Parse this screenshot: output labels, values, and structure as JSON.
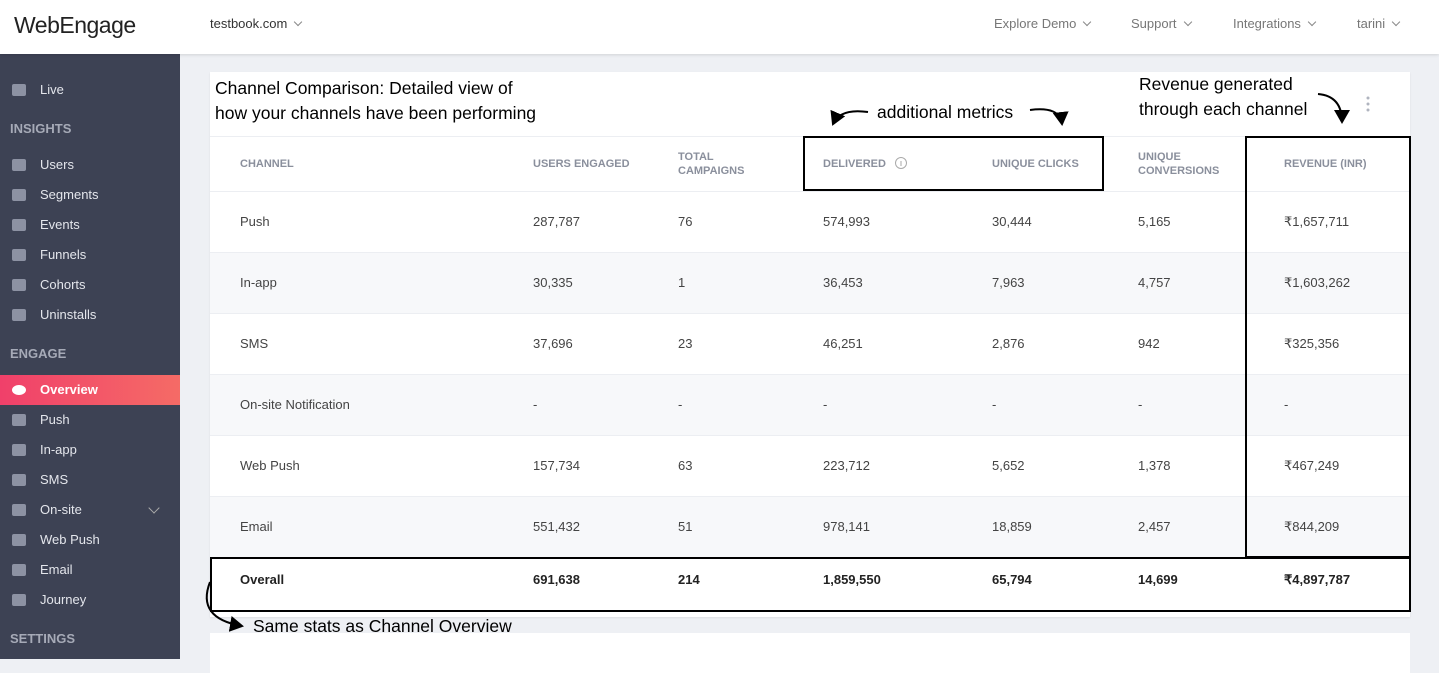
{
  "header": {
    "logo": "WebEngage",
    "project": "testbook.com",
    "nav": [
      "Explore Demo",
      "Support",
      "Integrations",
      "tarini"
    ]
  },
  "sidebar": {
    "top": [
      {
        "label": "Live"
      }
    ],
    "sections": [
      {
        "title": "INSIGHTS",
        "items": [
          {
            "label": "Users"
          },
          {
            "label": "Segments"
          },
          {
            "label": "Events"
          },
          {
            "label": "Funnels"
          },
          {
            "label": "Cohorts"
          },
          {
            "label": "Uninstalls"
          }
        ]
      },
      {
        "title": "ENGAGE",
        "items": [
          {
            "label": "Overview",
            "active": true
          },
          {
            "label": "Push"
          },
          {
            "label": "In-app"
          },
          {
            "label": "SMS"
          },
          {
            "label": "On-site",
            "expandable": true
          },
          {
            "label": "Web Push"
          },
          {
            "label": "Email"
          },
          {
            "label": "Journey"
          }
        ]
      },
      {
        "title": "SETTINGS",
        "items": []
      }
    ]
  },
  "annotations": {
    "card_title": [
      "Channel Comparison: Detailed view of",
      "how your channels have been performing"
    ],
    "additional_metrics": "additional metrics",
    "revenue": [
      "Revenue generated",
      "through each channel"
    ],
    "overview": "Same stats as Channel Overview"
  },
  "table": {
    "headers": [
      "CHANNEL",
      "USERS ENGAGED",
      "TOTAL CAMPAIGNS",
      "DELIVERED",
      "UNIQUE CLICKS",
      "UNIQUE CONVERSIONS",
      "REVENUE (INR)"
    ],
    "rows": [
      [
        "Push",
        "287,787",
        "76",
        "574,993",
        "30,444",
        "5,165",
        "₹1,657,711"
      ],
      [
        "In-app",
        "30,335",
        "1",
        "36,453",
        "7,963",
        "4,757",
        "₹1,603,262"
      ],
      [
        "SMS",
        "37,696",
        "23",
        "46,251",
        "2,876",
        "942",
        "₹325,356"
      ],
      [
        "On-site Notification",
        "-",
        "-",
        "-",
        "-",
        "-",
        "-"
      ],
      [
        "Web Push",
        "157,734",
        "63",
        "223,712",
        "5,652",
        "1,378",
        "₹467,249"
      ],
      [
        "Email",
        "551,432",
        "51",
        "978,141",
        "18,859",
        "2,457",
        "₹844,209"
      ]
    ],
    "total": [
      "Overall",
      "691,638",
      "214",
      "1,859,550",
      "65,794",
      "14,699",
      "₹4,897,787"
    ]
  }
}
